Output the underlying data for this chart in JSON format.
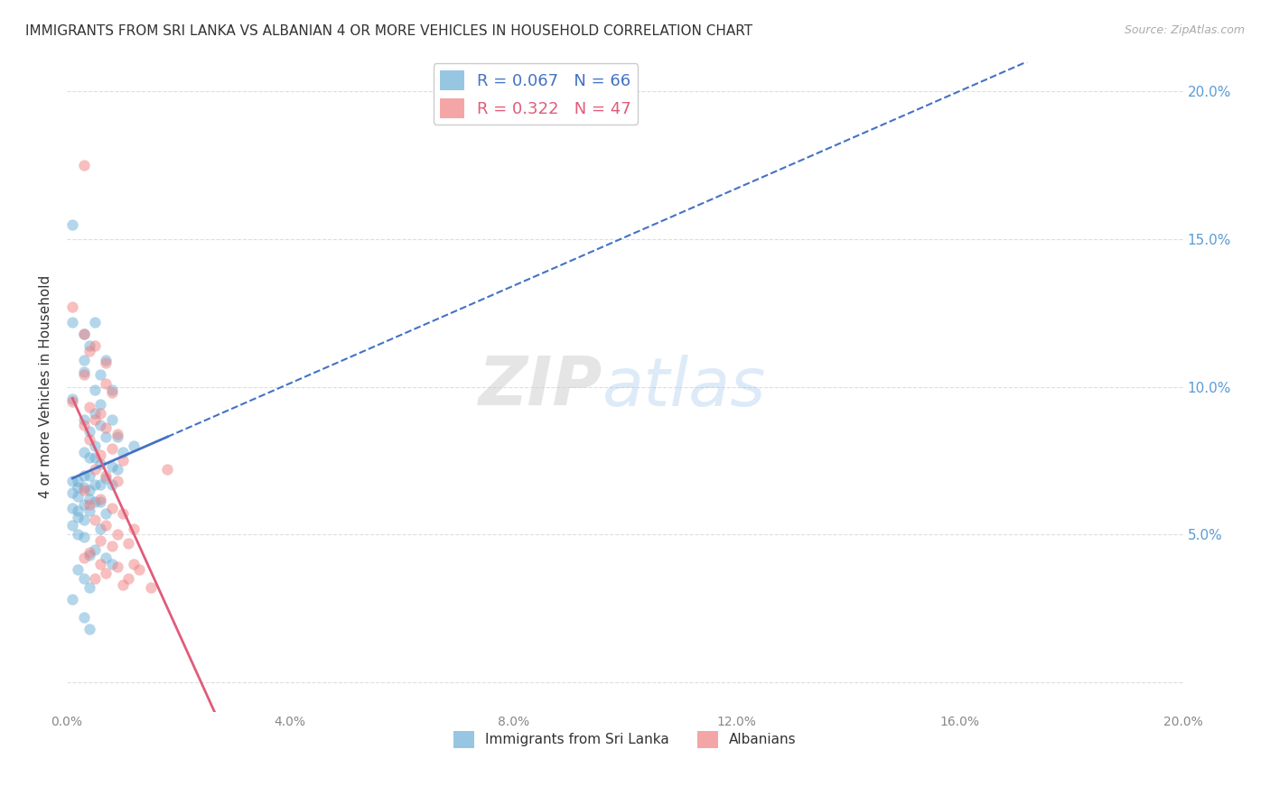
{
  "title": "IMMIGRANTS FROM SRI LANKA VS ALBANIAN 4 OR MORE VEHICLES IN HOUSEHOLD CORRELATION CHART",
  "source": "Source: ZipAtlas.com",
  "ylabel": "4 or more Vehicles in Household",
  "xlim": [
    0.0,
    0.2
  ],
  "ylim": [
    -0.01,
    0.21
  ],
  "legend1_r": "0.067",
  "legend1_n": "66",
  "legend2_r": "0.322",
  "legend2_n": "47",
  "legend1_color": "#6baed6",
  "legend2_color": "#f08080",
  "legend1_line_color": "#4472c4",
  "legend2_line_color": "#e05c7a",
  "watermark_zip": "ZIP",
  "watermark_atlas": "atlas",
  "blue_scatter": [
    [
      0.001,
      0.155
    ],
    [
      0.005,
      0.122
    ],
    [
      0.001,
      0.122
    ],
    [
      0.003,
      0.118
    ],
    [
      0.004,
      0.114
    ],
    [
      0.003,
      0.109
    ],
    [
      0.007,
      0.109
    ],
    [
      0.003,
      0.105
    ],
    [
      0.006,
      0.104
    ],
    [
      0.005,
      0.099
    ],
    [
      0.008,
      0.099
    ],
    [
      0.001,
      0.096
    ],
    [
      0.006,
      0.094
    ],
    [
      0.005,
      0.091
    ],
    [
      0.003,
      0.089
    ],
    [
      0.008,
      0.089
    ],
    [
      0.006,
      0.087
    ],
    [
      0.004,
      0.085
    ],
    [
      0.007,
      0.083
    ],
    [
      0.009,
      0.083
    ],
    [
      0.005,
      0.08
    ],
    [
      0.012,
      0.08
    ],
    [
      0.003,
      0.078
    ],
    [
      0.01,
      0.078
    ],
    [
      0.004,
      0.076
    ],
    [
      0.005,
      0.076
    ],
    [
      0.006,
      0.074
    ],
    [
      0.008,
      0.073
    ],
    [
      0.009,
      0.072
    ],
    [
      0.003,
      0.07
    ],
    [
      0.004,
      0.07
    ],
    [
      0.007,
      0.069
    ],
    [
      0.001,
      0.068
    ],
    [
      0.002,
      0.068
    ],
    [
      0.005,
      0.067
    ],
    [
      0.006,
      0.067
    ],
    [
      0.008,
      0.067
    ],
    [
      0.002,
      0.066
    ],
    [
      0.003,
      0.066
    ],
    [
      0.004,
      0.065
    ],
    [
      0.001,
      0.064
    ],
    [
      0.002,
      0.063
    ],
    [
      0.004,
      0.062
    ],
    [
      0.005,
      0.061
    ],
    [
      0.006,
      0.061
    ],
    [
      0.003,
      0.06
    ],
    [
      0.001,
      0.059
    ],
    [
      0.002,
      0.058
    ],
    [
      0.004,
      0.058
    ],
    [
      0.007,
      0.057
    ],
    [
      0.002,
      0.056
    ],
    [
      0.003,
      0.055
    ],
    [
      0.001,
      0.053
    ],
    [
      0.006,
      0.052
    ],
    [
      0.002,
      0.05
    ],
    [
      0.003,
      0.049
    ],
    [
      0.005,
      0.045
    ],
    [
      0.004,
      0.043
    ],
    [
      0.007,
      0.042
    ],
    [
      0.008,
      0.04
    ],
    [
      0.002,
      0.038
    ],
    [
      0.003,
      0.035
    ],
    [
      0.004,
      0.032
    ],
    [
      0.001,
      0.028
    ],
    [
      0.003,
      0.022
    ],
    [
      0.004,
      0.018
    ]
  ],
  "pink_scatter": [
    [
      0.003,
      0.175
    ],
    [
      0.001,
      0.127
    ],
    [
      0.003,
      0.118
    ],
    [
      0.005,
      0.114
    ],
    [
      0.004,
      0.112
    ],
    [
      0.007,
      0.108
    ],
    [
      0.003,
      0.104
    ],
    [
      0.007,
      0.101
    ],
    [
      0.008,
      0.098
    ],
    [
      0.001,
      0.095
    ],
    [
      0.004,
      0.093
    ],
    [
      0.006,
      0.091
    ],
    [
      0.005,
      0.089
    ],
    [
      0.003,
      0.087
    ],
    [
      0.007,
      0.086
    ],
    [
      0.009,
      0.084
    ],
    [
      0.004,
      0.082
    ],
    [
      0.008,
      0.079
    ],
    [
      0.006,
      0.077
    ],
    [
      0.01,
      0.075
    ],
    [
      0.005,
      0.072
    ],
    [
      0.007,
      0.07
    ],
    [
      0.009,
      0.068
    ],
    [
      0.003,
      0.065
    ],
    [
      0.006,
      0.062
    ],
    [
      0.004,
      0.06
    ],
    [
      0.008,
      0.059
    ],
    [
      0.01,
      0.057
    ],
    [
      0.005,
      0.055
    ],
    [
      0.007,
      0.053
    ],
    [
      0.012,
      0.052
    ],
    [
      0.009,
      0.05
    ],
    [
      0.006,
      0.048
    ],
    [
      0.011,
      0.047
    ],
    [
      0.008,
      0.046
    ],
    [
      0.004,
      0.044
    ],
    [
      0.003,
      0.042
    ],
    [
      0.006,
      0.04
    ],
    [
      0.009,
      0.039
    ],
    [
      0.013,
      0.038
    ],
    [
      0.007,
      0.037
    ],
    [
      0.005,
      0.035
    ],
    [
      0.01,
      0.033
    ],
    [
      0.015,
      0.032
    ],
    [
      0.018,
      0.072
    ],
    [
      0.012,
      0.04
    ],
    [
      0.011,
      0.035
    ]
  ],
  "grid_color": "#dddddd",
  "scatter_alpha": 0.5,
  "scatter_size": 80
}
